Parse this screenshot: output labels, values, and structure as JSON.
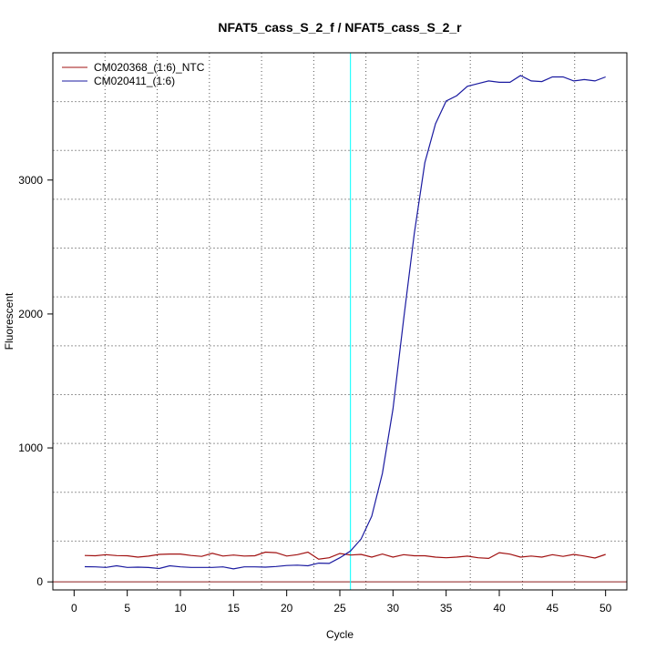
{
  "chart_data": {
    "type": "line",
    "title": "NFAT5_cass_S_2_f / NFAT5_cass_S_2_r",
    "xlabel": "Cycle",
    "ylabel": "Fluorescent",
    "xlim": [
      -2,
      52
    ],
    "ylim": [
      -60,
      3950
    ],
    "xticks": [
      0,
      5,
      10,
      15,
      20,
      25,
      30,
      35,
      40,
      45,
      50
    ],
    "yticks": [
      0,
      1000,
      2000,
      3000
    ],
    "grid": true,
    "legend_position": "top-left",
    "threshold_cycle": 26,
    "threshold_color": "#00ffff",
    "baseline_value": 0,
    "baseline_color": "#8b1a1a",
    "x": [
      1,
      2,
      3,
      4,
      5,
      6,
      7,
      8,
      9,
      10,
      11,
      12,
      13,
      14,
      15,
      16,
      17,
      18,
      19,
      20,
      21,
      22,
      23,
      24,
      25,
      26,
      27,
      28,
      29,
      30,
      31,
      32,
      33,
      34,
      35,
      36,
      37,
      38,
      39,
      40,
      41,
      42,
      43,
      44,
      45,
      46,
      47,
      48,
      49,
      50
    ],
    "series": [
      {
        "name": "CM020368_(1:6)_NTC",
        "color": "#a01010",
        "values": [
          197,
          195,
          203,
          196,
          195,
          185,
          192,
          205,
          208,
          208,
          197,
          190,
          213,
          193,
          200,
          193,
          195,
          222,
          218,
          193,
          203,
          222,
          170,
          180,
          212,
          200,
          205,
          185,
          208,
          185,
          203,
          195,
          195,
          185,
          180,
          185,
          192,
          180,
          175,
          218,
          207,
          185,
          193,
          185,
          203,
          190,
          205,
          193,
          178,
          205
        ]
      },
      {
        "name": "CM020411_(1:6)",
        "color": "#1a1aa0",
        "values": [
          113,
          112,
          108,
          120,
          108,
          110,
          107,
          100,
          120,
          112,
          108,
          108,
          108,
          112,
          97,
          112,
          112,
          110,
          115,
          122,
          125,
          120,
          140,
          138,
          180,
          230,
          320,
          490,
          810,
          1290,
          1960,
          2600,
          3130,
          3420,
          3590,
          3630,
          3700,
          3720,
          3740,
          3730,
          3730,
          3780,
          3740,
          3735,
          3770,
          3770,
          3740,
          3750,
          3740,
          3770
        ]
      }
    ]
  }
}
